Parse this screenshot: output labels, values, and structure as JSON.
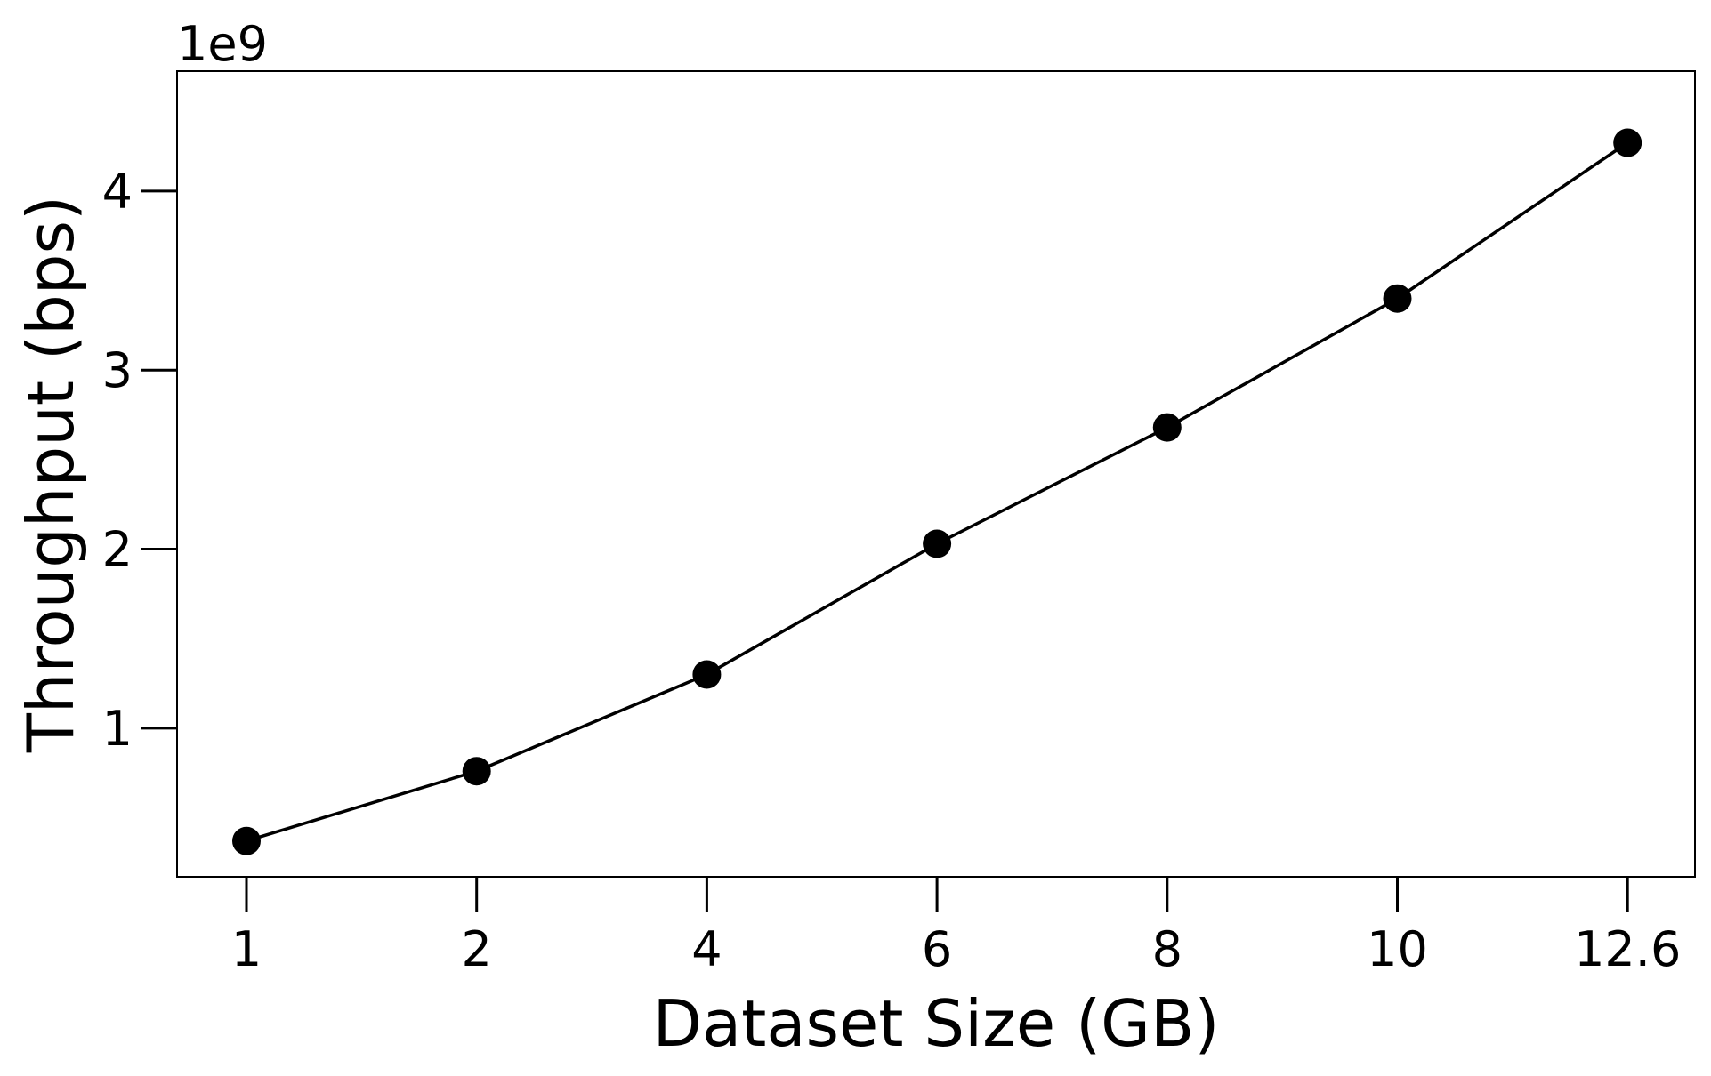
{
  "chart_data": {
    "type": "line",
    "title": "",
    "xlabel": "Dataset Size (GB)",
    "ylabel": "Throughput (bps)",
    "y_offset_label": "1e9",
    "categories": [
      "1",
      "2",
      "4",
      "6",
      "8",
      "10",
      "12.6"
    ],
    "y_ticks": [
      1,
      2,
      3,
      4
    ],
    "y_tick_labels": [
      "1",
      "2",
      "3",
      "4"
    ],
    "ylim": [
      0.17,
      4.67
    ],
    "y_multiplier": 1000000000,
    "grid": false,
    "legend": "none",
    "series": [
      {
        "values": [
          0.37,
          0.76,
          1.3,
          2.03,
          2.68,
          3.4,
          4.27
        ],
        "color": "#000000",
        "marker": "circle"
      }
    ]
  }
}
